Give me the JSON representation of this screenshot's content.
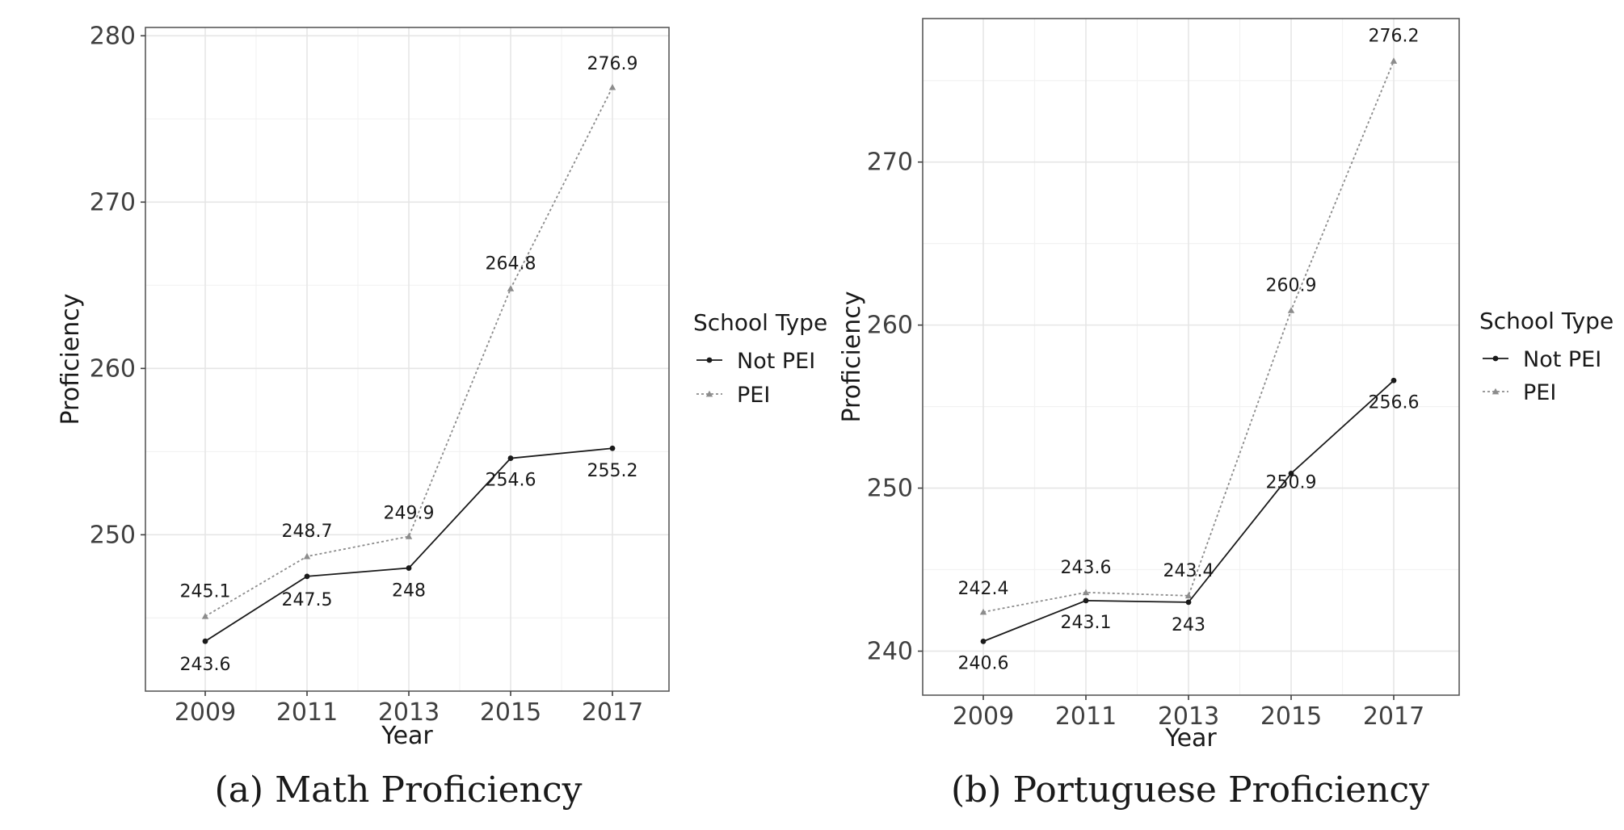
{
  "chart_data": [
    {
      "type": "line",
      "title": "",
      "caption": "(a) Math Proficiency",
      "xlabel": "Year",
      "ylabel": "Proficiency",
      "categories": [
        2009,
        2011,
        2013,
        2015,
        2017
      ],
      "yticks": [
        250,
        260,
        270,
        280
      ],
      "ylim": [
        240.6,
        280.5
      ],
      "grid": true,
      "legend": {
        "title": "School Type",
        "position": "right"
      },
      "series": [
        {
          "name": "Not PEI",
          "style": "solid",
          "marker": "circle",
          "color": "#1a1a1a",
          "values": [
            243.6,
            247.5,
            248,
            254.6,
            255.2
          ],
          "labels": [
            "243.6",
            "247.5",
            "248",
            "254.6",
            "255.2"
          ]
        },
        {
          "name": "PEI",
          "style": "dotted",
          "marker": "triangle",
          "color": "#8c8c8c",
          "values": [
            245.1,
            248.7,
            249.9,
            264.8,
            276.9
          ],
          "labels": [
            "245.1",
            "248.7",
            "249.9",
            "264.8",
            "276.9"
          ]
        }
      ]
    },
    {
      "type": "line",
      "title": "",
      "caption": "(b) Portuguese Proficiency",
      "xlabel": "Year",
      "ylabel": "Proficiency",
      "categories": [
        2009,
        2011,
        2013,
        2015,
        2017
      ],
      "yticks": [
        240,
        250,
        260,
        270
      ],
      "ylim": [
        237.3,
        278.8
      ],
      "grid": true,
      "legend": {
        "title": "School Type",
        "position": "right"
      },
      "series": [
        {
          "name": "Not PEI",
          "style": "solid",
          "marker": "circle",
          "color": "#1a1a1a",
          "values": [
            240.6,
            243.1,
            243,
            250.9,
            256.6
          ],
          "labels": [
            "240.6",
            "243.1",
            "243",
            "250.9",
            "256.6"
          ]
        },
        {
          "name": "PEI",
          "style": "dotted",
          "marker": "triangle",
          "color": "#8c8c8c",
          "values": [
            242.4,
            243.6,
            243.4,
            260.9,
            276.2
          ],
          "labels": [
            "242.4",
            "243.6",
            "243.4",
            "260.9",
            "276.2"
          ]
        }
      ]
    }
  ]
}
